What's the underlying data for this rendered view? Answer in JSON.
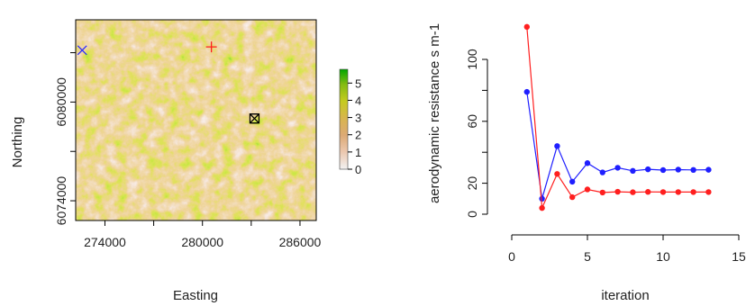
{
  "chart_data": [
    {
      "type": "heatmap",
      "xlabel": "Easting",
      "ylabel": "Northing",
      "x_ticks": [
        "274000",
        "280000",
        "286000"
      ],
      "y_ticks": [
        "6074000",
        "6080000"
      ],
      "xlim": [
        272200,
        287000
      ],
      "ylim": [
        6072800,
        6085000
      ],
      "x_tick_values": [
        274000,
        280000,
        286000
      ],
      "y_tick_values": [
        6074000,
        6080000
      ],
      "x_minor_tick_values": [
        277000,
        283000
      ],
      "y_minor_tick_values": [
        6077000,
        6083000
      ],
      "legend": {
        "ticks": [
          "0",
          "1",
          "2",
          "3",
          "4",
          "5"
        ],
        "tick_values": [
          0,
          1,
          2,
          3,
          4,
          5
        ],
        "range": [
          0,
          5.8
        ],
        "colors": [
          "#f2f2f2",
          "#ecc8b0",
          "#dcaa75",
          "#d8b54f",
          "#c5cb1f",
          "#83bb12",
          "#00a600"
        ],
        "placement": "right"
      },
      "markers": [
        {
          "symbol": "x",
          "color": "#2b2bff",
          "x": 272600,
          "y": 6083150
        },
        {
          "symbol": "+",
          "color": "#ff1f1f",
          "x": 280550,
          "y": 6083350
        },
        {
          "symbol": "boxed-x",
          "color": "#000000",
          "x": 283200,
          "y": 6079000
        }
      ]
    },
    {
      "type": "line",
      "xlabel": "iteration",
      "ylabel": "aerodynamic resistance s m-1",
      "xlim": [
        0,
        15
      ],
      "ylim": [
        -2,
        122
      ],
      "x_ticks": [
        "0",
        "5",
        "10",
        "15"
      ],
      "x_tick_values": [
        0,
        5,
        10,
        15
      ],
      "y_ticks": [
        "0",
        "20",
        "60",
        "100"
      ],
      "y_tick_values": [
        0,
        20,
        60,
        100
      ],
      "y_minor_tick_values": [
        40,
        80
      ],
      "x": [
        1,
        2,
        3,
        4,
        5,
        6,
        7,
        8,
        9,
        10,
        11,
        12,
        13
      ],
      "series": [
        {
          "color": "#1f1fff",
          "values": [
            79,
            10,
            44,
            21,
            33,
            27,
            30,
            28,
            29,
            28.5,
            28.8,
            28.6,
            28.7
          ]
        },
        {
          "color": "#ff1f1f",
          "values": [
            121,
            4,
            26,
            11,
            16,
            14,
            14.5,
            14.2,
            14.4,
            14.3,
            14.3,
            14.3,
            14.3
          ]
        }
      ]
    }
  ]
}
